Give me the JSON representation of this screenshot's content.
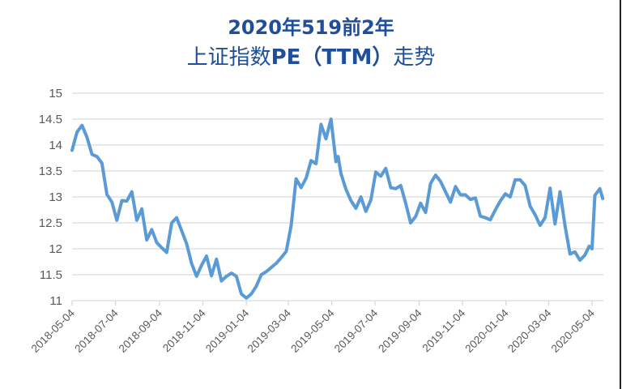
{
  "chart_data": {
    "type": "line",
    "title": "2020年519前2年",
    "subtitle": "上证指数PE（TTM）走势",
    "xlabel": "",
    "ylabel": "",
    "ylim": [
      11,
      15
    ],
    "yticks": [
      11,
      11.5,
      12,
      12.5,
      13,
      13.5,
      14,
      14.5,
      15
    ],
    "xticks": [
      "2018-05-04",
      "2018-07-04",
      "2018-09-04",
      "2018-11-04",
      "2019-01-04",
      "2019-03-04",
      "2019-05-04",
      "2019-07-04",
      "2019-09-04",
      "2019-11-04",
      "2020-01-04",
      "2020-03-04",
      "2020-05-04"
    ],
    "grid": true,
    "legend": null,
    "line_color": "#5b9bd5",
    "series": [
      {
        "name": "上证指数PE（TTM）",
        "points": [
          {
            "x": "2018-05-04",
            "y": 13.9
          },
          {
            "x": "2018-05-11",
            "y": 14.25
          },
          {
            "x": "2018-05-18",
            "y": 14.38
          },
          {
            "x": "2018-05-25",
            "y": 14.15
          },
          {
            "x": "2018-06-01",
            "y": 13.82
          },
          {
            "x": "2018-06-08",
            "y": 13.78
          },
          {
            "x": "2018-06-15",
            "y": 13.65
          },
          {
            "x": "2018-06-22",
            "y": 13.05
          },
          {
            "x": "2018-06-29",
            "y": 12.9
          },
          {
            "x": "2018-07-06",
            "y": 12.55
          },
          {
            "x": "2018-07-13",
            "y": 12.93
          },
          {
            "x": "2018-07-20",
            "y": 12.92
          },
          {
            "x": "2018-07-27",
            "y": 13.1
          },
          {
            "x": "2018-08-03",
            "y": 12.55
          },
          {
            "x": "2018-08-10",
            "y": 12.77
          },
          {
            "x": "2018-08-17",
            "y": 12.17
          },
          {
            "x": "2018-08-24",
            "y": 12.37
          },
          {
            "x": "2018-08-31",
            "y": 12.12
          },
          {
            "x": "2018-09-07",
            "y": 12.02
          },
          {
            "x": "2018-09-14",
            "y": 11.93
          },
          {
            "x": "2018-09-21",
            "y": 12.5
          },
          {
            "x": "2018-09-28",
            "y": 12.6
          },
          {
            "x": "2018-10-12",
            "y": 12.1
          },
          {
            "x": "2018-10-19",
            "y": 11.72
          },
          {
            "x": "2018-10-26",
            "y": 11.47
          },
          {
            "x": "2018-11-02",
            "y": 11.68
          },
          {
            "x": "2018-11-09",
            "y": 11.86
          },
          {
            "x": "2018-11-16",
            "y": 11.48
          },
          {
            "x": "2018-11-23",
            "y": 11.8
          },
          {
            "x": "2018-11-30",
            "y": 11.38
          },
          {
            "x": "2018-12-07",
            "y": 11.47
          },
          {
            "x": "2018-12-14",
            "y": 11.53
          },
          {
            "x": "2018-12-21",
            "y": 11.47
          },
          {
            "x": "2018-12-28",
            "y": 11.13
          },
          {
            "x": "2019-01-04",
            "y": 11.05
          },
          {
            "x": "2019-01-11",
            "y": 11.13
          },
          {
            "x": "2019-01-18",
            "y": 11.28
          },
          {
            "x": "2019-01-25",
            "y": 11.5
          },
          {
            "x": "2019-02-01",
            "y": 11.56
          },
          {
            "x": "2019-02-15",
            "y": 11.72
          },
          {
            "x": "2019-02-22",
            "y": 11.83
          },
          {
            "x": "2019-03-01",
            "y": 11.95
          },
          {
            "x": "2019-03-08",
            "y": 12.45
          },
          {
            "x": "2019-03-15",
            "y": 13.35
          },
          {
            "x": "2019-03-22",
            "y": 13.18
          },
          {
            "x": "2019-03-29",
            "y": 13.36
          },
          {
            "x": "2019-04-05",
            "y": 13.7
          },
          {
            "x": "2019-04-12",
            "y": 13.64
          },
          {
            "x": "2019-04-19",
            "y": 14.4
          },
          {
            "x": "2019-04-26",
            "y": 14.12
          },
          {
            "x": "2019-05-03",
            "y": 14.5
          },
          {
            "x": "2019-05-10",
            "y": 13.68
          },
          {
            "x": "2019-05-13",
            "y": 13.78
          },
          {
            "x": "2019-05-17",
            "y": 13.45
          },
          {
            "x": "2019-05-24",
            "y": 13.15
          },
          {
            "x": "2019-05-31",
            "y": 12.93
          },
          {
            "x": "2019-06-07",
            "y": 12.78
          },
          {
            "x": "2019-06-14",
            "y": 13.0
          },
          {
            "x": "2019-06-21",
            "y": 12.72
          },
          {
            "x": "2019-06-28",
            "y": 12.94
          },
          {
            "x": "2019-07-05",
            "y": 13.48
          },
          {
            "x": "2019-07-12",
            "y": 13.4
          },
          {
            "x": "2019-07-19",
            "y": 13.55
          },
          {
            "x": "2019-07-26",
            "y": 13.18
          },
          {
            "x": "2019-08-02",
            "y": 13.16
          },
          {
            "x": "2019-08-09",
            "y": 13.22
          },
          {
            "x": "2019-08-16",
            "y": 12.88
          },
          {
            "x": "2019-08-23",
            "y": 12.5
          },
          {
            "x": "2019-08-30",
            "y": 12.62
          },
          {
            "x": "2019-09-06",
            "y": 12.88
          },
          {
            "x": "2019-09-13",
            "y": 12.7
          },
          {
            "x": "2019-09-20",
            "y": 13.26
          },
          {
            "x": "2019-09-27",
            "y": 13.42
          },
          {
            "x": "2019-10-04",
            "y": 13.3
          },
          {
            "x": "2019-10-18",
            "y": 12.9
          },
          {
            "x": "2019-10-25",
            "y": 13.2
          },
          {
            "x": "2019-11-01",
            "y": 13.04
          },
          {
            "x": "2019-11-08",
            "y": 13.04
          },
          {
            "x": "2019-11-15",
            "y": 12.95
          },
          {
            "x": "2019-11-22",
            "y": 12.98
          },
          {
            "x": "2019-11-29",
            "y": 12.63
          },
          {
            "x": "2019-12-06",
            "y": 12.6
          },
          {
            "x": "2019-12-13",
            "y": 12.56
          },
          {
            "x": "2019-12-20",
            "y": 12.75
          },
          {
            "x": "2019-12-27",
            "y": 12.92
          },
          {
            "x": "2020-01-03",
            "y": 13.06
          },
          {
            "x": "2020-01-10",
            "y": 13.0
          },
          {
            "x": "2020-01-17",
            "y": 13.33
          },
          {
            "x": "2020-01-24",
            "y": 13.33
          },
          {
            "x": "2020-01-31",
            "y": 13.22
          },
          {
            "x": "2020-02-07",
            "y": 12.82
          },
          {
            "x": "2020-02-14",
            "y": 12.66
          },
          {
            "x": "2020-02-21",
            "y": 12.45
          },
          {
            "x": "2020-02-28",
            "y": 12.6
          },
          {
            "x": "2020-03-06",
            "y": 13.17
          },
          {
            "x": "2020-03-13",
            "y": 12.48
          },
          {
            "x": "2020-03-20",
            "y": 13.1
          },
          {
            "x": "2020-03-27",
            "y": 12.45
          },
          {
            "x": "2020-04-03",
            "y": 11.9
          },
          {
            "x": "2020-04-10",
            "y": 11.94
          },
          {
            "x": "2020-04-17",
            "y": 11.78
          },
          {
            "x": "2020-04-24",
            "y": 11.88
          },
          {
            "x": "2020-04-30",
            "y": 12.05
          },
          {
            "x": "2020-05-04",
            "y": 12.0
          },
          {
            "x": "2020-05-08",
            "y": 13.03
          },
          {
            "x": "2020-05-15",
            "y": 13.16
          },
          {
            "x": "2020-05-19",
            "y": 12.97
          }
        ]
      }
    ]
  },
  "header": {
    "title_line1": "2020年519前2年",
    "title_line2_prefix": "上证指数",
    "title_line2_bold": "PE（TTM）",
    "title_line2_suffix": "走势"
  }
}
